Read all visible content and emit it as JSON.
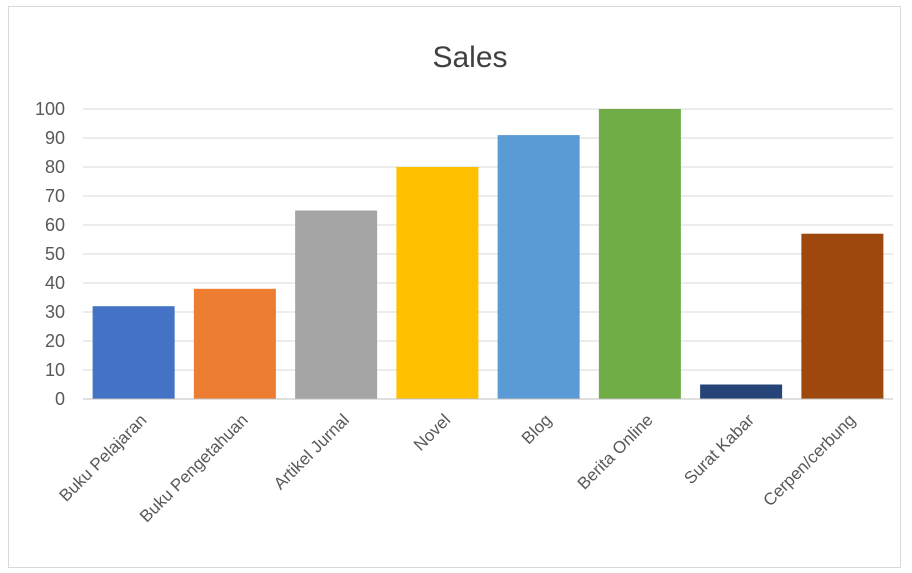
{
  "chart_data": {
    "type": "bar",
    "title": "Sales",
    "categories": [
      "Buku Pelajaran",
      "Buku Pengetahuan",
      "Artikel Jurnal",
      "Novel",
      "Blog",
      "Berita Online",
      "Surat Kabar",
      "Cerpen/cerbung"
    ],
    "values": [
      32,
      38,
      65,
      80,
      91,
      100,
      5,
      57
    ],
    "colors": [
      "#4472c4",
      "#ed7d31",
      "#a5a5a5",
      "#ffc000",
      "#5b9bd5",
      "#70ad47",
      "#264478",
      "#9e480e"
    ],
    "ylim": [
      0,
      100
    ],
    "yticks": [
      0,
      10,
      20,
      30,
      40,
      50,
      60,
      70,
      80,
      90,
      100
    ],
    "grid": true,
    "legend": "none"
  }
}
